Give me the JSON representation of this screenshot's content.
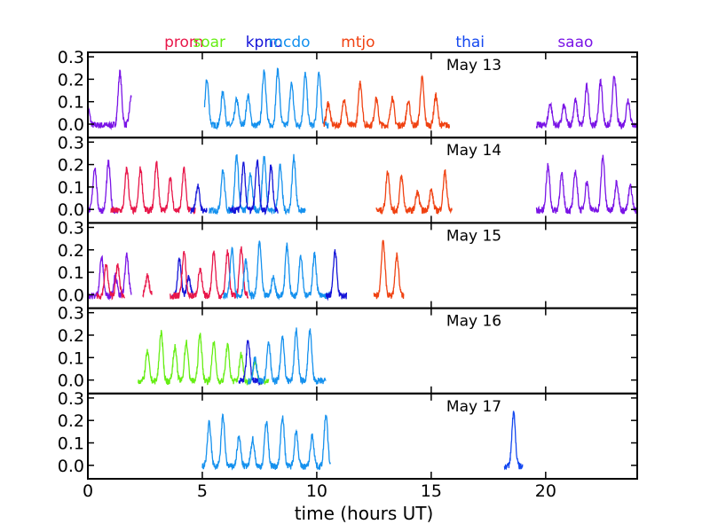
{
  "chart_data": {
    "type": "line",
    "xlabel": "time (hours UT)",
    "ylabel": "",
    "title": "",
    "xlim": [
      0,
      24
    ],
    "ylim": [
      -0.06,
      0.32
    ],
    "x_ticks": [
      0,
      5,
      10,
      15,
      20
    ],
    "y_ticks": [
      0.0,
      0.1,
      0.2,
      0.3
    ],
    "y_tick_labels": [
      "0.0",
      "0.1",
      "0.2",
      "0.3"
    ],
    "grid": false,
    "stations": [
      {
        "name": "prom",
        "color": "#e8174a",
        "x": 4.2
      },
      {
        "name": "soar",
        "color": "#66ee14",
        "x": 5.3
      },
      {
        "name": "kpno",
        "color": "#1414d8",
        "x": 7.7
      },
      {
        "name": "mcdo",
        "color": "#1591ee",
        "x": 8.8
      },
      {
        "name": "mtjo",
        "color": "#f04212",
        "x": 11.8
      },
      {
        "name": "thai",
        "color": "#1448f0",
        "x": 16.7
      },
      {
        "name": "saao",
        "color": "#7a14e6",
        "x": 21.3
      }
    ],
    "panels": [
      {
        "label": "May 13",
        "segments": [
          {
            "station": "saao",
            "xs": 0.0,
            "xe": 1.9,
            "peaks": [
              0.0,
              1.4,
              1.9
            ]
          },
          {
            "station": "mcdo",
            "xs": 5.1,
            "xe": 10.5,
            "peaks": [
              5.2,
              5.9,
              6.5,
              7.0,
              7.7,
              8.3,
              8.9,
              9.5,
              10.1
            ]
          },
          {
            "station": "mtjo",
            "xs": 10.3,
            "xe": 15.8,
            "peaks": [
              10.5,
              11.2,
              11.9,
              12.6,
              13.3,
              14.0,
              14.6,
              15.2
            ]
          },
          {
            "station": "saao",
            "xs": 19.6,
            "xe": 24.0,
            "peaks": [
              20.2,
              20.8,
              21.3,
              21.8,
              22.4,
              23.0,
              23.6
            ]
          }
        ]
      },
      {
        "label": "May 14",
        "segments": [
          {
            "station": "saao",
            "xs": 0.0,
            "xe": 1.3,
            "peaks": [
              0.3,
              0.9
            ]
          },
          {
            "station": "prom",
            "xs": 1.0,
            "xe": 4.7,
            "peaks": [
              1.7,
              2.3,
              3.0,
              3.6,
              4.2
            ]
          },
          {
            "station": "kpno",
            "xs": 4.5,
            "xe": 5.2,
            "peaks": [
              4.8
            ]
          },
          {
            "station": "mcdo",
            "xs": 5.3,
            "xe": 9.5,
            "peaks": [
              5.9,
              6.5,
              7.1,
              7.7,
              8.4,
              9.0
            ]
          },
          {
            "station": "kpno",
            "xs": 6.2,
            "xe": 8.3,
            "peaks": [
              6.8,
              7.4,
              8.0
            ]
          },
          {
            "station": "mtjo",
            "xs": 12.6,
            "xe": 15.9,
            "peaks": [
              13.1,
              13.7,
              14.4,
              15.0,
              15.6
            ]
          },
          {
            "station": "saao",
            "xs": 19.6,
            "xe": 24.0,
            "peaks": [
              20.1,
              20.7,
              21.3,
              21.8,
              22.5,
              23.1,
              23.7
            ]
          }
        ]
      },
      {
        "label": "May 15",
        "segments": [
          {
            "station": "saao",
            "xs": 0.0,
            "xe": 1.9,
            "peaks": [
              0.6,
              1.2,
              1.7
            ]
          },
          {
            "station": "prom",
            "xs": 0.4,
            "xe": 1.6,
            "peaks": [
              0.8,
              1.3
            ]
          },
          {
            "station": "prom",
            "xs": 2.4,
            "xe": 2.8,
            "peaks": [
              2.6
            ]
          },
          {
            "station": "kpno",
            "xs": 3.7,
            "xe": 4.6,
            "peaks": [
              4.0,
              4.4
            ]
          },
          {
            "station": "prom",
            "xs": 3.6,
            "xe": 7.0,
            "peaks": [
              4.2,
              4.9,
              5.5,
              6.1,
              6.7
            ]
          },
          {
            "station": "mcdo",
            "xs": 5.9,
            "xe": 10.6,
            "peaks": [
              6.3,
              6.9,
              7.5,
              8.1,
              8.7,
              9.3,
              9.9
            ]
          },
          {
            "station": "kpno",
            "xs": 10.4,
            "xe": 11.3,
            "peaks": [
              10.8
            ]
          },
          {
            "station": "mtjo",
            "xs": 12.5,
            "xe": 13.8,
            "peaks": [
              12.9,
              13.5
            ]
          }
        ]
      },
      {
        "label": "May 16",
        "segments": [
          {
            "station": "soar",
            "xs": 2.2,
            "xe": 7.9,
            "peaks": [
              2.6,
              3.2,
              3.8,
              4.3,
              4.9,
              5.5,
              6.1,
              6.7,
              7.3
            ]
          },
          {
            "station": "kpno",
            "xs": 6.6,
            "xe": 7.6,
            "peaks": [
              7.0
            ]
          },
          {
            "station": "mcdo",
            "xs": 7.0,
            "xe": 10.4,
            "peaks": [
              7.3,
              7.9,
              8.5,
              9.1,
              9.7
            ]
          }
        ]
      },
      {
        "label": "May 17",
        "segments": [
          {
            "station": "mcdo",
            "xs": 5.0,
            "xe": 10.6,
            "peaks": [
              5.3,
              5.9,
              6.6,
              7.2,
              7.8,
              8.5,
              9.1,
              9.8,
              10.4
            ]
          },
          {
            "station": "thai",
            "xs": 18.2,
            "xe": 19.0,
            "peaks": [
              18.6
            ]
          }
        ]
      }
    ]
  }
}
